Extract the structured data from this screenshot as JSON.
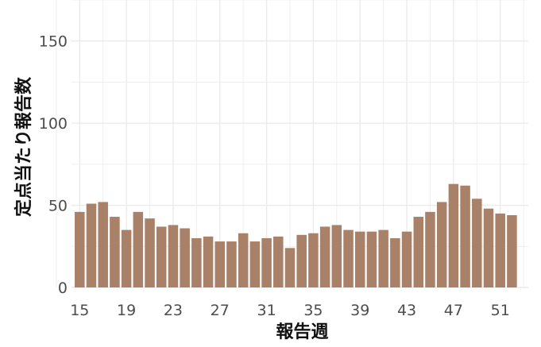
{
  "chart_data": {
    "type": "bar",
    "title": "",
    "xlabel": "報告週",
    "ylabel": "定点当たり報告数",
    "x": [
      15,
      16,
      17,
      18,
      19,
      20,
      21,
      22,
      23,
      24,
      25,
      26,
      27,
      28,
      29,
      30,
      31,
      32,
      33,
      34,
      35,
      36,
      37,
      38,
      39,
      40,
      41,
      42,
      43,
      44,
      45,
      46,
      47,
      48,
      49,
      50,
      51,
      52
    ],
    "values": [
      46,
      51,
      52,
      43,
      35,
      46,
      42,
      37,
      38,
      36,
      30,
      31,
      28,
      28,
      33,
      28,
      30,
      31,
      24,
      32,
      33,
      37,
      38,
      35,
      34,
      34,
      35,
      30,
      34,
      43,
      46,
      52,
      63,
      62,
      54,
      48,
      45,
      44
    ],
    "xticks": [
      "15",
      "19",
      "23",
      "27",
      "31",
      "35",
      "39",
      "43",
      "47",
      "51"
    ],
    "yticks": [
      "0",
      "50",
      "100",
      "150"
    ],
    "ylim": [
      0,
      175
    ],
    "xlim": [
      14.3,
      53.4
    ],
    "grid": true,
    "colors": {
      "bar": "#a98068",
      "grid": "#ebebeb",
      "tick_text": "#4d4d4d"
    }
  }
}
